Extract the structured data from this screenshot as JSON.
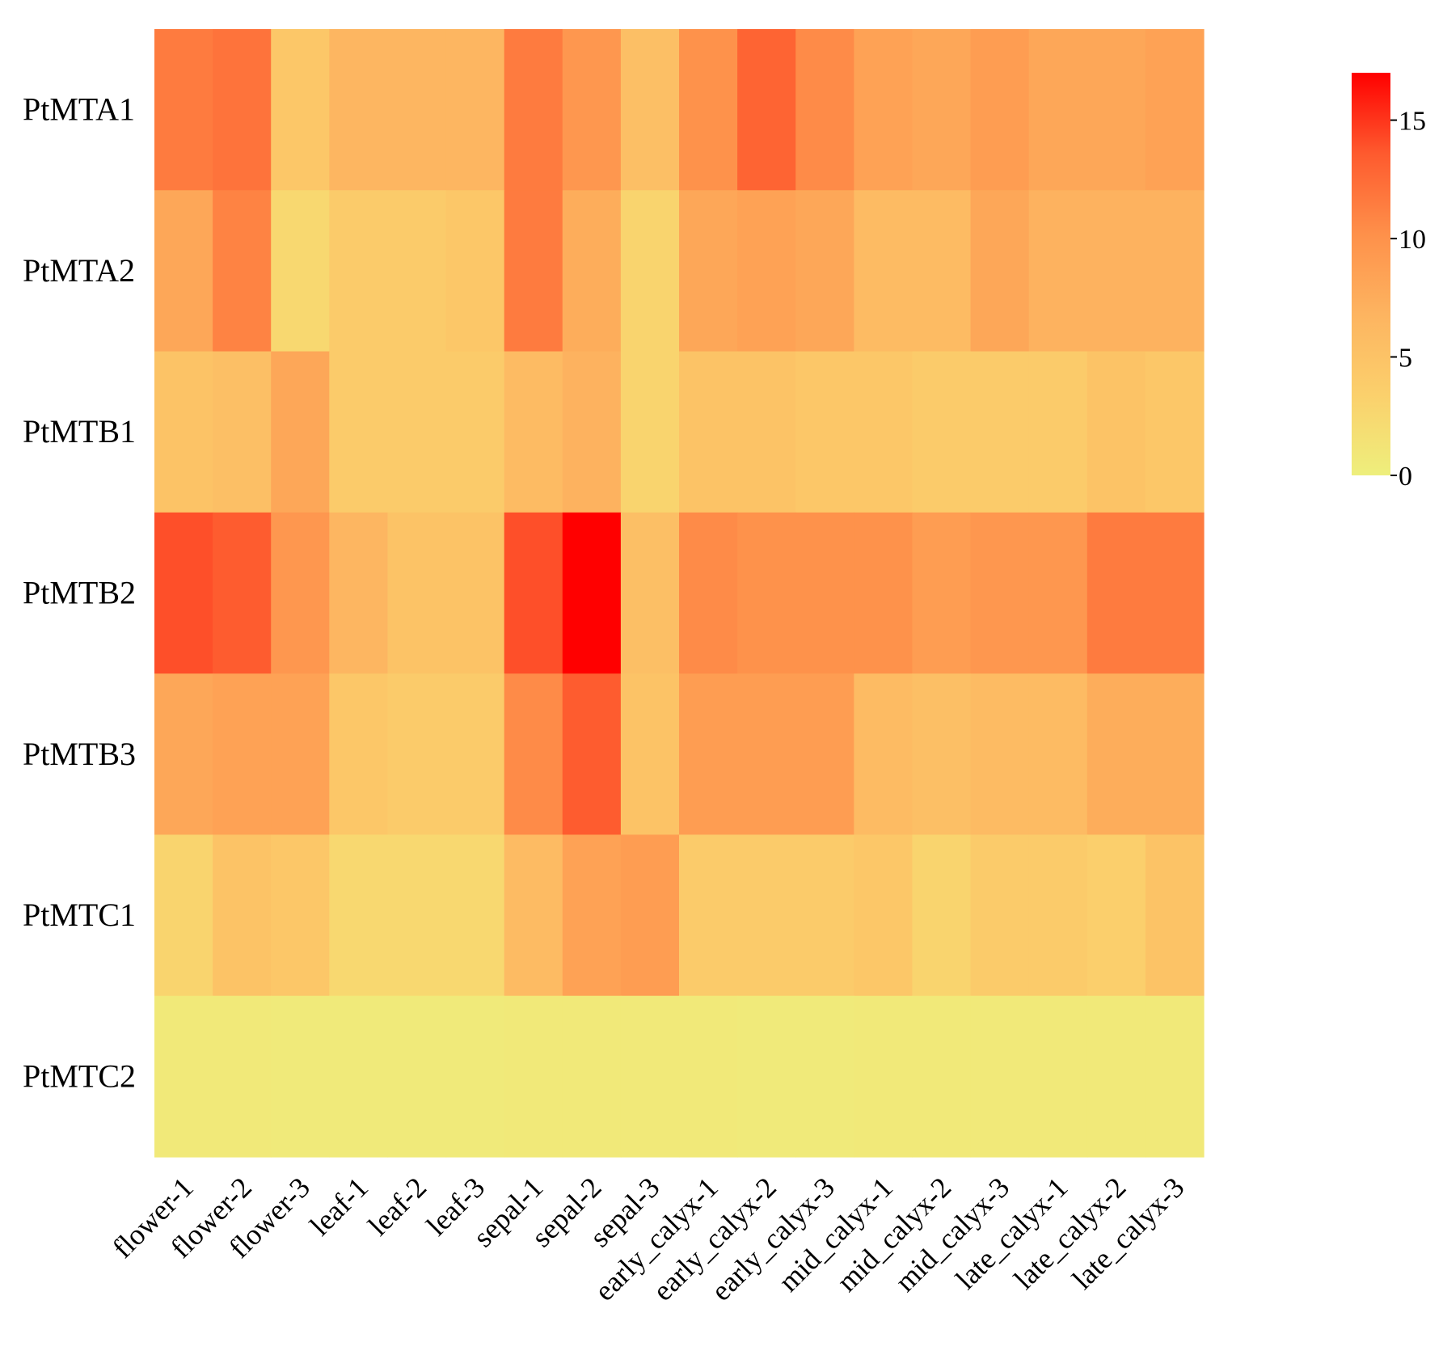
{
  "chart_data": {
    "type": "heatmap",
    "title": "",
    "xlabel": "",
    "ylabel": "",
    "rows": [
      "PtMTA1",
      "PtMTA2",
      "PtMTB1",
      "PtMTB2",
      "PtMTB3",
      "PtMTC1",
      "PtMTC2"
    ],
    "columns": [
      "flower-1",
      "flower-2",
      "flower-3",
      "leaf-1",
      "leaf-2",
      "leaf-3",
      "sepal-1",
      "sepal-2",
      "sepal-3",
      "early_calyx-1",
      "early_calyx-2",
      "early_calyx-3",
      "mid_calyx-1",
      "mid_calyx-2",
      "mid_calyx-3",
      "late_calyx-1",
      "late_calyx-2",
      "late_calyx-3"
    ],
    "values": [
      [
        11.5,
        12.0,
        4.5,
        6.5,
        6.5,
        6.5,
        11.5,
        9.5,
        5.5,
        10.0,
        13.0,
        10.5,
        8.5,
        8.0,
        9.0,
        8.0,
        8.0,
        8.5
      ],
      [
        8.0,
        11.0,
        2.5,
        4.0,
        4.0,
        4.5,
        11.5,
        7.5,
        3.0,
        8.0,
        8.5,
        8.0,
        6.0,
        6.0,
        8.0,
        7.0,
        7.0,
        7.0
      ],
      [
        5.0,
        5.5,
        8.0,
        4.0,
        4.0,
        4.0,
        6.0,
        7.0,
        3.0,
        5.0,
        5.0,
        4.5,
        4.5,
        4.0,
        4.0,
        4.0,
        5.0,
        4.5
      ],
      [
        14.0,
        13.5,
        9.5,
        6.5,
        5.0,
        5.0,
        14.0,
        17.0,
        5.5,
        10.5,
        10.0,
        10.0,
        10.0,
        9.0,
        9.5,
        9.5,
        11.5,
        11.5
      ],
      [
        8.0,
        8.5,
        8.5,
        4.5,
        4.0,
        4.0,
        10.5,
        13.5,
        5.0,
        9.0,
        9.0,
        9.0,
        6.0,
        5.5,
        6.0,
        6.0,
        7.5,
        7.5
      ],
      [
        3.0,
        5.0,
        4.5,
        2.5,
        2.5,
        2.5,
        6.0,
        8.5,
        9.0,
        4.0,
        4.0,
        4.0,
        4.5,
        3.0,
        4.0,
        4.0,
        3.5,
        5.0
      ],
      [
        0.7,
        0.7,
        0.5,
        0.5,
        0.5,
        0.5,
        0.7,
        0.7,
        0.7,
        0.7,
        0.5,
        0.5,
        0.7,
        0.7,
        0.7,
        0.7,
        0.7,
        0.7
      ]
    ],
    "colorbar": {
      "min": 0,
      "max": 17,
      "ticks": [
        15,
        10,
        5,
        0
      ],
      "tick_labels": [
        "15",
        "10",
        "5",
        "0"
      ],
      "placement": "top-right"
    },
    "colormap": [
      "#eeef7c",
      "#fbd06c",
      "#fdb460",
      "#fe904a",
      "#fe5a2e",
      "#ff0000"
    ]
  }
}
